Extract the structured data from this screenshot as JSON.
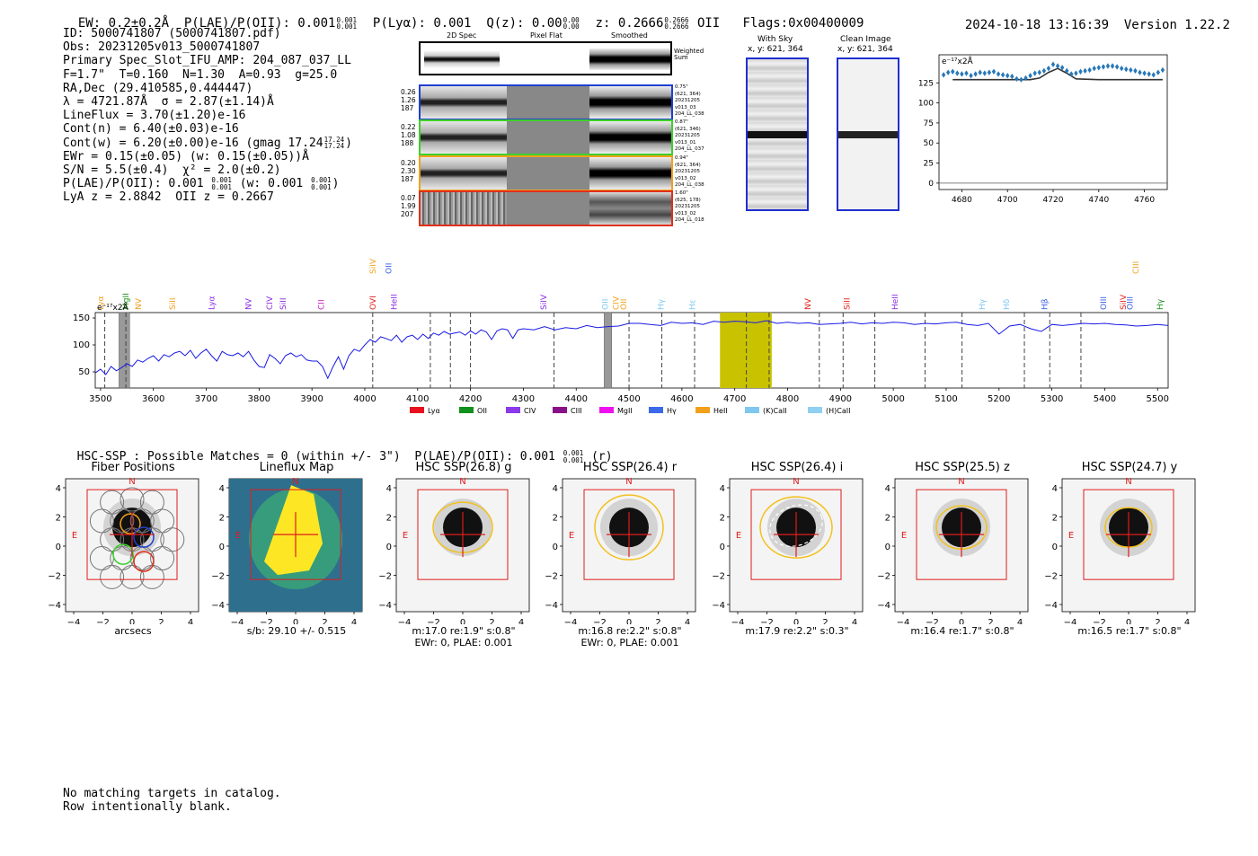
{
  "header": {
    "ew_label": "EW: 0.2±0.2Å",
    "plae_label": "P(LAE)/P(OII): 0.001",
    "plae_hi": "0.001",
    "plae_lo": "0.001",
    "plya_label": "P(Lyα): 0.001",
    "qz_label": "Q(z): 0.00",
    "qz_hi": "0.00",
    "qz_lo": "0.00",
    "z_label": "z: 0.2666",
    "z_hi": "0.2666",
    "z_lo": "0.2666",
    "z_type": "OII",
    "flags": "Flags:0x00400009",
    "timestamp": "2024-10-18 13:16:39",
    "version": "Version 1.22.2"
  },
  "info": {
    "id": "ID: 5000741807 (5000741807.pdf)",
    "obs": "Obs: 20231205v013_5000741807",
    "primary": "Primary Spec_Slot_IFU_AMP: 204_087_037_LL",
    "params": "F=1.7\"  T=0.160  N=1.30  A=0.93  g=25.0",
    "radec": "RA,Dec (29.410585,0.444447)",
    "lambda": "λ = 4721.87Å  σ = 2.87(±1.14)Å",
    "lineflux": "LineFlux = 3.70(±1.20)e-16",
    "contn": "Cont(n) = 6.40(±0.03)e-16",
    "contw": "Cont(w) = 6.20(±0.00)e-16 (gmag 17.24",
    "gmag_hi": "17.24",
    "gmag_lo": "17.24",
    "close_paren": ")",
    "ewr": "EWr = 0.15(±0.05) (w: 0.15(±0.05))Å",
    "sn": "S/N = 5.5(±0.4)  χ² = 2.0(±0.2)",
    "plae": "P(LAE)/P(OII): 0.001",
    "plae_hi": "0.001",
    "plae_lo": "0.001",
    "plae_w": "(w: 0.001",
    "plae_w_hi": "0.001",
    "plae_w_lo": "0.001",
    "plae_close": ")",
    "lya_oii": "LyA z = 2.8842  OII z = 0.2667"
  },
  "spec2d": {
    "col_headers": [
      "2D Spec",
      "Pixel Flat",
      "Smoothed"
    ],
    "weighted_sum": "Weighted\nSum",
    "rows": [
      {
        "left": [
          "0.26",
          "1.26",
          "187"
        ],
        "right": [
          "0.75\"",
          "(621, 364)",
          "20231205",
          "v013_03",
          "204_LL_038"
        ],
        "color": "#1f3fd0"
      },
      {
        "left": [
          "0.22",
          "1.08",
          "188"
        ],
        "right": [
          "0.87\"",
          "(621, 346)",
          "20231205",
          "v013_01",
          "204_LL_037"
        ],
        "color": "#3cd12a"
      },
      {
        "left": [
          "0.20",
          "2.30",
          "187"
        ],
        "right": [
          "0.94\"",
          "(621, 364)",
          "20231205",
          "v013_02",
          "204_LL_038"
        ],
        "color": "#f2a01c"
      },
      {
        "left": [
          "0.07",
          "1.99",
          "207"
        ],
        "right": [
          "1.60\"",
          "(625, 178)",
          "20231205",
          "v013_02",
          "204_LL_018"
        ],
        "color": "#e0301c"
      }
    ]
  },
  "sky": {
    "with_sky_title": "With Sky",
    "with_sky_xy": "x, y: 621, 364",
    "clean_title": "Clean Image",
    "clean_xy": "x, y: 621, 364"
  },
  "small_chart": {
    "unit_label": "e⁻¹⁷x2Å",
    "yticks": [
      "0",
      "25",
      "50",
      "75",
      "100",
      "125"
    ],
    "xticks": [
      "4680",
      "4700",
      "4720",
      "4740",
      "4760"
    ]
  },
  "chart_data": [
    {
      "type": "scatter",
      "title": "",
      "xlabel": "",
      "ylabel": "e-17 x2Å",
      "xlim": [
        4670,
        4770
      ],
      "ylim": [
        -8,
        160
      ],
      "series": [
        {
          "name": "data",
          "x": [
            4672,
            4674,
            4676,
            4678,
            4680,
            4682,
            4684,
            4686,
            4688,
            4690,
            4692,
            4694,
            4696,
            4698,
            4700,
            4702,
            4704,
            4706,
            4708,
            4710,
            4712,
            4714,
            4716,
            4718,
            4720,
            4722,
            4724,
            4726,
            4728,
            4730,
            4732,
            4734,
            4736,
            4738,
            4740,
            4742,
            4744,
            4746,
            4748,
            4750,
            4752,
            4754,
            4756,
            4758,
            4760,
            4762,
            4764,
            4766,
            4768
          ],
          "y": [
            135,
            138,
            139,
            137,
            136,
            137,
            134,
            136,
            138,
            137,
            138,
            139,
            136,
            135,
            134,
            133,
            130,
            129,
            131,
            134,
            137,
            138,
            140,
            143,
            148,
            146,
            144,
            140,
            136,
            137,
            139,
            140,
            141,
            143,
            144,
            145,
            146,
            146,
            145,
            143,
            142,
            141,
            140,
            138,
            137,
            136,
            135,
            138,
            141
          ]
        },
        {
          "name": "model",
          "x": [
            4676,
            4700,
            4710,
            4714,
            4718,
            4722,
            4726,
            4730,
            4740,
            4768
          ],
          "y": [
            129,
            129,
            129,
            131,
            138,
            143,
            137,
            130,
            129,
            129
          ]
        }
      ]
    },
    {
      "type": "line",
      "title": "",
      "xlabel": "",
      "ylabel": "e-17 x2Å",
      "xlim": [
        3490,
        5520
      ],
      "ylim": [
        20,
        160
      ],
      "xticks": [
        "3500",
        "3600",
        "3700",
        "3800",
        "3900",
        "4000",
        "4100",
        "4200",
        "4300",
        "4400",
        "4500",
        "4600",
        "4700",
        "4800",
        "4900",
        "5000",
        "5100",
        "5200",
        "5300",
        "5400",
        "5500"
      ],
      "yticks": [
        "50",
        "100",
        "150"
      ],
      "highlight_band": [
        4672,
        4770
      ],
      "highlight_line": 4722,
      "masked_bands": [
        [
          3535,
          3555
        ],
        [
          4453,
          4467
        ]
      ],
      "series": [
        {
          "name": "spectrum",
          "x": [
            3490,
            3500,
            3510,
            3520,
            3530,
            3540,
            3550,
            3560,
            3570,
            3580,
            3590,
            3600,
            3610,
            3620,
            3630,
            3640,
            3650,
            3660,
            3670,
            3680,
            3690,
            3700,
            3710,
            3720,
            3730,
            3740,
            3750,
            3760,
            3770,
            3780,
            3790,
            3800,
            3810,
            3820,
            3830,
            3840,
            3850,
            3860,
            3870,
            3880,
            3890,
            3900,
            3910,
            3920,
            3930,
            3940,
            3950,
            3960,
            3970,
            3980,
            3990,
            4000,
            4010,
            4020,
            4030,
            4040,
            4050,
            4060,
            4070,
            4080,
            4090,
            4100,
            4110,
            4120,
            4130,
            4140,
            4150,
            4160,
            4170,
            4180,
            4190,
            4200,
            4210,
            4220,
            4230,
            4240,
            4250,
            4260,
            4270,
            4280,
            4290,
            4300,
            4320,
            4340,
            4360,
            4380,
            4400,
            4420,
            4440,
            4460,
            4480,
            4500,
            4520,
            4540,
            4560,
            4580,
            4600,
            4620,
            4640,
            4660,
            4680,
            4700,
            4720,
            4740,
            4760,
            4780,
            4800,
            4820,
            4840,
            4860,
            4880,
            4900,
            4920,
            4940,
            4960,
            4980,
            5000,
            5020,
            5040,
            5060,
            5080,
            5100,
            5120,
            5140,
            5160,
            5180,
            5200,
            5220,
            5240,
            5260,
            5280,
            5300,
            5320,
            5340,
            5360,
            5380,
            5400,
            5420,
            5440,
            5460,
            5480,
            5500,
            5520
          ],
          "y": [
            48,
            55,
            45,
            60,
            52,
            58,
            65,
            60,
            72,
            68,
            75,
            80,
            70,
            82,
            78,
            85,
            88,
            80,
            90,
            75,
            85,
            92,
            80,
            70,
            88,
            82,
            80,
            85,
            78,
            88,
            72,
            60,
            58,
            82,
            75,
            65,
            80,
            85,
            78,
            82,
            72,
            70,
            70,
            60,
            38,
            60,
            78,
            55,
            80,
            92,
            88,
            100,
            110,
            105,
            115,
            112,
            108,
            118,
            105,
            115,
            118,
            110,
            120,
            112,
            122,
            118,
            125,
            120,
            122,
            124,
            118,
            126,
            120,
            128,
            124,
            110,
            126,
            130,
            128,
            112,
            128,
            130,
            128,
            134,
            128,
            132,
            130,
            136,
            132,
            134,
            135,
            140,
            140,
            138,
            136,
            142,
            140,
            141,
            138,
            144,
            142,
            144,
            143,
            141,
            145,
            140,
            142,
            140,
            141,
            138,
            139,
            140,
            142,
            139,
            141,
            140,
            142,
            141,
            138,
            140,
            139,
            141,
            142,
            138,
            136,
            140,
            120,
            135,
            138,
            130,
            125,
            138,
            136,
            138,
            140,
            139,
            140,
            138,
            137,
            135,
            136,
            138,
            136
          ]
        }
      ]
    }
  ],
  "emission_lines": [
    {
      "name": "Lyα",
      "x": 3500,
      "color": "#f2a01c",
      "row": 2
    },
    {
      "name": "MgII",
      "x": 3548,
      "color": "#1a8f1a",
      "row": 2
    },
    {
      "name": "NV",
      "x": 3572,
      "color": "#f2a01c",
      "row": 2
    },
    {
      "name": "SiII",
      "x": 3636,
      "color": "#f2a01c",
      "row": 2
    },
    {
      "name": "Lyα",
      "x": 3710,
      "color": "#8a2be2",
      "row": 2
    },
    {
      "name": "NV",
      "x": 3780,
      "color": "#8a2be2",
      "row": 2
    },
    {
      "name": "CIV",
      "x": 3820,
      "color": "#8a2be2",
      "row": 2
    },
    {
      "name": "SiII",
      "x": 3845,
      "color": "#8a2be2",
      "row": 2
    },
    {
      "name": "CII",
      "x": 3918,
      "color": "#c020c0",
      "row": 2
    },
    {
      "name": "OVI",
      "x": 4015,
      "color": "#e0201c",
      "row": 2
    },
    {
      "name": "SiIV",
      "x": 4015,
      "color": "#f2a01c",
      "row": 1
    },
    {
      "name": "OII",
      "x": 4045,
      "color": "#3a5fe0",
      "row": 1
    },
    {
      "name": "HeII",
      "x": 4055,
      "color": "#8a2be2",
      "row": 2
    },
    {
      "name": "SiIV",
      "x": 4338,
      "color": "#8a2be2",
      "row": 2
    },
    {
      "name": "OII",
      "x": 4455,
      "color": "#7ec8f0",
      "row": 2
    },
    {
      "name": "CIV",
      "x": 4475,
      "color": "#f2a01c",
      "row": 2
    },
    {
      "name": "OII",
      "x": 4490,
      "color": "#f2a01c",
      "row": 2
    },
    {
      "name": "Hγ",
      "x": 4560,
      "color": "#7ec8f0",
      "row": 2
    },
    {
      "name": "Hε",
      "x": 4620,
      "color": "#7ec8f0",
      "row": 2
    },
    {
      "name": "NV",
      "x": 4838,
      "color": "#e0201c",
      "row": 2
    },
    {
      "name": "SiII",
      "x": 4912,
      "color": "#e0201c",
      "row": 2
    },
    {
      "name": "HeII",
      "x": 5003,
      "color": "#8a2be2",
      "row": 2
    },
    {
      "name": "Hγ",
      "x": 5168,
      "color": "#7ec8f0",
      "row": 2
    },
    {
      "name": "Hδ",
      "x": 5214,
      "color": "#7ec8f0",
      "row": 2
    },
    {
      "name": "Hβ",
      "x": 5286,
      "color": "#3a5fe0",
      "row": 2
    },
    {
      "name": "OIII",
      "x": 5398,
      "color": "#3a5fe0",
      "row": 2
    },
    {
      "name": "SiIV",
      "x": 5435,
      "color": "#e0201c",
      "row": 2
    },
    {
      "name": "OIII",
      "x": 5448,
      "color": "#3a5fe0",
      "row": 2
    },
    {
      "name": "CIII",
      "x": 5459,
      "color": "#f2a01c",
      "row": 1
    },
    {
      "name": "Hγ",
      "x": 5505,
      "color": "#1a8f1a",
      "row": 2
    }
  ],
  "dashed_lines": [
    3508,
    3548,
    4015,
    4124,
    4162,
    4200,
    4358,
    4500,
    4562,
    4624,
    4722,
    4765,
    4860,
    4905,
    4965,
    5060,
    5130,
    5248,
    5296,
    5355
  ],
  "spectrum_unit": "e⁻¹⁷x2Å",
  "legend": [
    {
      "label": "Lyα",
      "color": "#e8101c"
    },
    {
      "label": "OII",
      "color": "#10901c"
    },
    {
      "label": "CIV",
      "color": "#8a3ae8"
    },
    {
      "label": "CIII",
      "color": "#8a108a"
    },
    {
      "label": "MgII",
      "color": "#ee10ee"
    },
    {
      "label": "Hγ",
      "color": "#3a6ae8"
    },
    {
      "label": "HeII",
      "color": "#f2a01c"
    },
    {
      "label": "(K)CaII",
      "color": "#7ec8f0"
    },
    {
      "label": "(H)CaII",
      "color": "#90d0f0"
    }
  ],
  "hsc": {
    "title": "HSC-SSP : Possible Matches = 0 (within +/- 3\")  P(LAE)/P(OII): 0.001",
    "title_hi": "0.001",
    "title_lo": "0.001",
    "title_band": "(r)"
  },
  "thumbs": [
    {
      "title": "Fiber Positions",
      "cap1": "arcsecs",
      "cap2": ""
    },
    {
      "title": "Lineflux Map",
      "cap1": "s/b: 29.10 +/- 0.515",
      "cap2": ""
    },
    {
      "title": "HSC SSP(26.8) g",
      "cap1": "m:17.0  re:1.9\"  s:0.8\"",
      "cap2": "EWr: 0, PLAE: 0.001"
    },
    {
      "title": "HSC SSP(26.4) r",
      "cap1": "m:16.8  re:2.2\"  s:0.8\"",
      "cap2": "EWr: 0, PLAE: 0.001"
    },
    {
      "title": "HSC SSP(26.4) i",
      "cap1": "m:17.9  re:2.2\"  s:0.3\"",
      "cap2": ""
    },
    {
      "title": "HSC SSP(25.5) z",
      "cap1": "m:16.4  re:1.7\"  s:0.8\"",
      "cap2": ""
    },
    {
      "title": "HSC SSP(24.7) y",
      "cap1": "m:16.5  re:1.7\"  s:0.8\"",
      "cap2": ""
    }
  ],
  "thumb_axis": {
    "yticks": [
      "4",
      "2",
      "0",
      "−2",
      "−4"
    ],
    "xticks": [
      "−4",
      "−2",
      "0",
      "2",
      "4"
    ],
    "north": "N",
    "east": "E"
  },
  "footer": {
    "line1": "No matching targets in catalog.",
    "line2": "Row intentionally blank."
  }
}
